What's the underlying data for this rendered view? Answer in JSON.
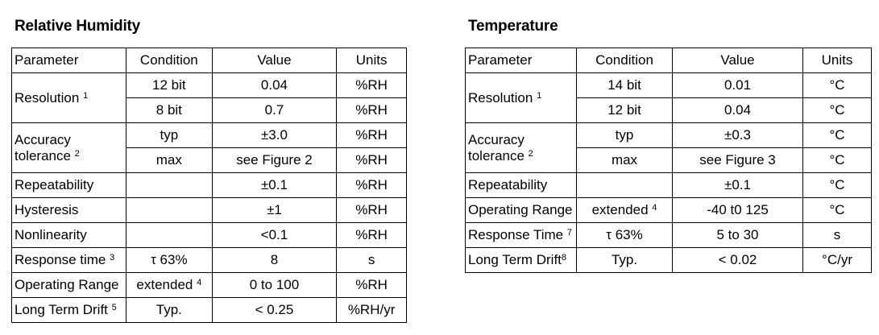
{
  "rh": {
    "title": "Relative Humidity",
    "headers": {
      "parameter": "Parameter",
      "condition": "Condition",
      "value": "Value",
      "units": "Units"
    },
    "resolution": {
      "label": "Resolution",
      "note": "1",
      "rows": [
        {
          "condition": "12 bit",
          "value": "0.04",
          "units": "%RH"
        },
        {
          "condition": "8 bit",
          "value": "0.7",
          "units": "%RH"
        }
      ]
    },
    "accuracy": {
      "label_line1": "Accuracy",
      "label_line2": "tolerance",
      "note": "2",
      "rows": [
        {
          "condition": "typ",
          "value": "±3.0",
          "units": "%RH"
        },
        {
          "condition": "max",
          "value": "see Figure 2",
          "units": "%RH"
        }
      ]
    },
    "repeatability": {
      "label": "Repeatability",
      "condition": "",
      "value": "±0.1",
      "units": "%RH"
    },
    "hysteresis": {
      "label": "Hysteresis",
      "condition": "",
      "value": "±1",
      "units": "%RH"
    },
    "nonlinearity": {
      "label": "Nonlinearity",
      "condition": "",
      "value": "<0.1",
      "units": "%RH"
    },
    "response": {
      "label": "Response time",
      "note": "3",
      "condition": "τ 63%",
      "value": "8",
      "units": "s"
    },
    "operating": {
      "label": "Operating Range",
      "condition": "extended",
      "cond_note": "4",
      "value": "0 to 100",
      "units": "%RH"
    },
    "drift": {
      "label": "Long Term Drift",
      "note": "5",
      "condition": "Typ.",
      "value": "< 0.25",
      "units": "%RH/yr"
    }
  },
  "temp": {
    "title": "Temperature",
    "headers": {
      "parameter": "Parameter",
      "condition": "Condition",
      "value": "Value",
      "units": "Units"
    },
    "resolution": {
      "label": "Resolution",
      "note": "1",
      "rows": [
        {
          "condition": "14 bit",
          "value": "0.01",
          "units": "°C"
        },
        {
          "condition": "12 bit",
          "value": "0.04",
          "units": "°C"
        }
      ]
    },
    "accuracy": {
      "label_line1": "Accuracy",
      "label_line2": "tolerance",
      "note": "2",
      "rows": [
        {
          "condition": "typ",
          "value": "±0.3",
          "units": "°C"
        },
        {
          "condition": "max",
          "value": "see Figure 3",
          "units": "°C"
        }
      ]
    },
    "repeatability": {
      "label": "Repeatability",
      "condition": "",
      "value": "±0.1",
      "units": "°C"
    },
    "operating": {
      "label": "Operating Range",
      "condition": "extended",
      "cond_note": "4",
      "value": "-40 t0 125",
      "units": "°C"
    },
    "response": {
      "label": "Response Time",
      "note": "7",
      "condition": "τ 63%",
      "value": "5 to 30",
      "units": "s"
    },
    "drift": {
      "label": "Long Term Drift",
      "note": "8",
      "condition": "Typ.",
      "value": "< 0.02",
      "units": "°C/yr"
    }
  }
}
